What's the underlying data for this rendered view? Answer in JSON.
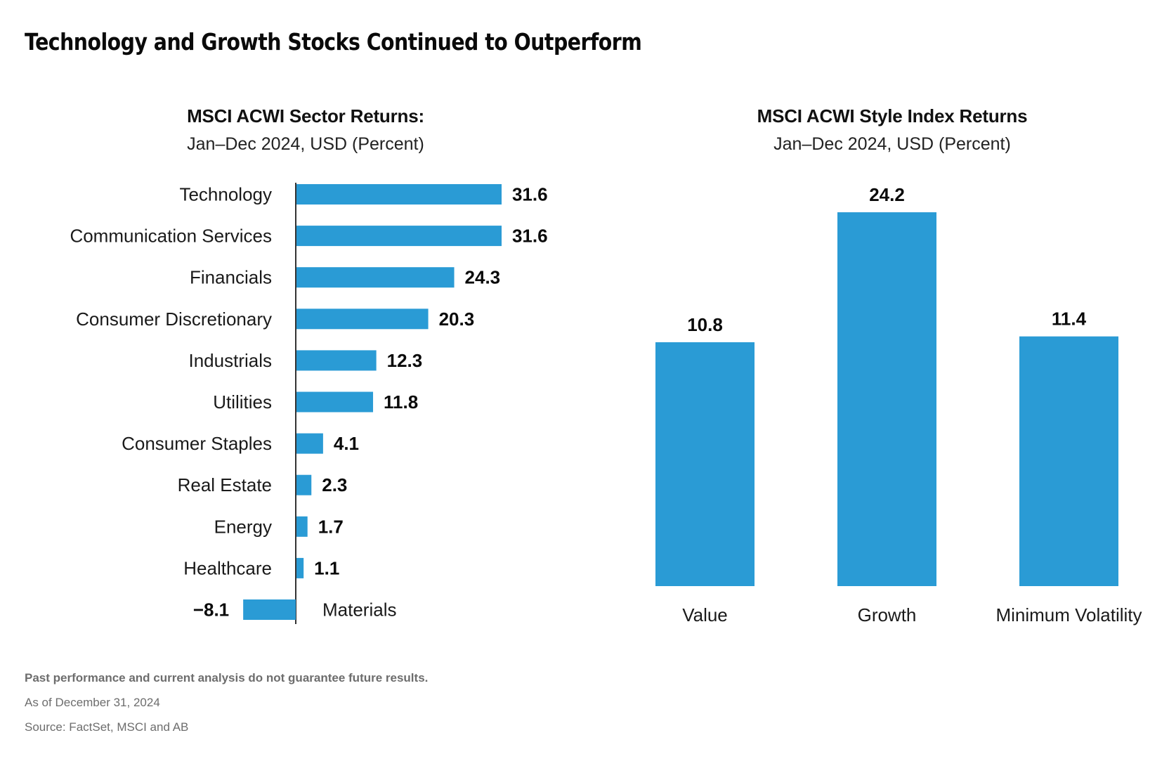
{
  "title": "Technology and Growth Stocks Continued to Outperform",
  "bar_color": "#2A9BD5",
  "axis_color": "#333333",
  "chart_data": [
    {
      "type": "bar",
      "orientation": "horizontal",
      "title": "MSCI ACWI Sector Returns:",
      "subtitle": "Jan–Dec 2024, USD (Percent)",
      "xlabel": "",
      "ylabel": "",
      "categories": [
        "Technology",
        "Communication Services",
        "Financials",
        "Consumer Discretionary",
        "Industrials",
        "Utilities",
        "Consumer Staples",
        "Real Estate",
        "Energy",
        "Healthcare",
        "Materials"
      ],
      "values": [
        31.6,
        31.6,
        24.3,
        20.3,
        12.3,
        11.8,
        4.1,
        2.3,
        1.7,
        1.1,
        -8.1
      ],
      "value_labels": [
        "31.6",
        "31.6",
        "24.3",
        "20.3",
        "12.3",
        "11.8",
        "4.1",
        "2.3",
        "1.7",
        "1.1",
        "−8.1"
      ],
      "grid": false,
      "legend": "none"
    },
    {
      "type": "bar",
      "orientation": "vertical",
      "title": "MSCI ACWI Style Index Returns",
      "subtitle": "Jan–Dec 2024, USD (Percent)",
      "xlabel": "",
      "ylabel": "",
      "categories": [
        "Value",
        "Growth",
        "Minimum Volatility"
      ],
      "values": [
        10.8,
        24.2,
        11.4
      ],
      "value_labels": [
        "10.8",
        "24.2",
        "11.4"
      ],
      "grid": false,
      "legend": "none"
    }
  ],
  "footnotes": [
    "Past performance and current analysis do not guarantee future results.",
    "As of December 31, 2024",
    "Source: FactSet, MSCI and AB"
  ]
}
